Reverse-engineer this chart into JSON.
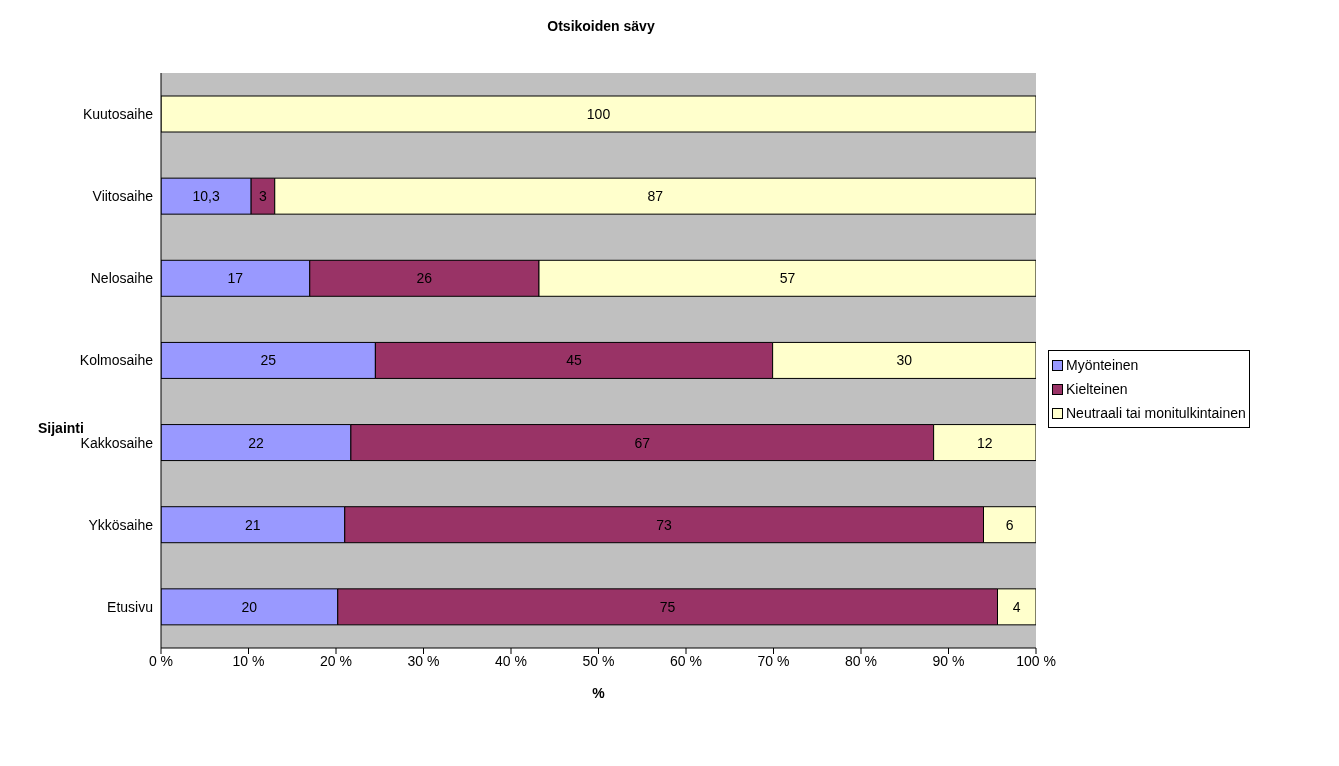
{
  "chart_data": {
    "type": "bar",
    "title": "Otsikoiden sävy",
    "xlabel": "%",
    "ylabel": "Sijainti",
    "orientation": "horizontal",
    "stacked": true,
    "categories": [
      "Kuutosaihe",
      "Viitosaihe",
      "Nelosaihe",
      "Kolmosaihe",
      "Kakkosaihe",
      "Ykkösaihe",
      "Etusivu"
    ],
    "series": [
      {
        "name": "Myönteinen",
        "color": "#9999ff",
        "values": [
          0,
          10.3,
          17.0,
          24.5,
          21.7,
          21,
          20.2
        ],
        "value_labels": [
          null,
          "10,3",
          "17",
          "25",
          "22",
          "21",
          "20"
        ]
      },
      {
        "name": "Kielteinen",
        "color": "#993366",
        "values": [
          0,
          2.7,
          26.2,
          45.4,
          66.6,
          73,
          75.4
        ],
        "value_labels": [
          null,
          "3",
          "26",
          "45",
          "67",
          "73",
          "75"
        ]
      },
      {
        "name": "Neutraali tai monitulkintainen",
        "color": "#ffffcc",
        "values": [
          100,
          87.0,
          56.8,
          30.1,
          11.7,
          6,
          4.4
        ],
        "value_labels": [
          "100",
          "87",
          "57",
          "30",
          "12",
          "6",
          "4"
        ]
      }
    ],
    "xlim": [
      0,
      100
    ],
    "xticks": [
      {
        "value": 0,
        "label": "0 %"
      },
      {
        "value": 10,
        "label": "10 %"
      },
      {
        "value": 20,
        "label": "20 %"
      },
      {
        "value": 30,
        "label": "30 %"
      },
      {
        "value": 40,
        "label": "40 %"
      },
      {
        "value": 50,
        "label": "50 %"
      },
      {
        "value": 60,
        "label": "60 %"
      },
      {
        "value": 70,
        "label": "70 %"
      },
      {
        "value": 80,
        "label": "80 %"
      },
      {
        "value": 90,
        "label": "90 %"
      },
      {
        "value": 100,
        "label": "100 %"
      }
    ],
    "legend": "right",
    "grid": false
  }
}
